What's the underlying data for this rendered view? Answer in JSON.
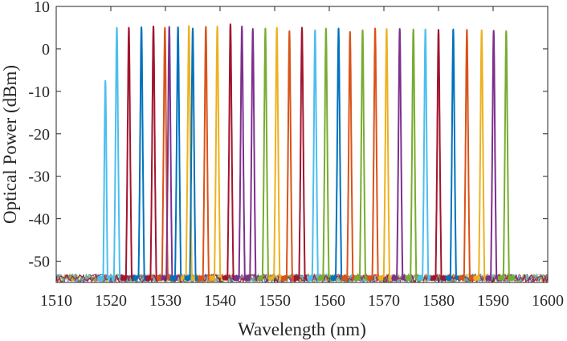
{
  "chart_data": {
    "type": "line",
    "title": "",
    "xlabel": "Wavelength (nm)",
    "ylabel": "Optical Power (dBm)",
    "xlim": [
      1510,
      1600
    ],
    "ylim": [
      -55,
      10
    ],
    "xticks": [
      1510,
      1520,
      1530,
      1540,
      1550,
      1560,
      1570,
      1580,
      1590,
      1600
    ],
    "xtick_labels": [
      "1510",
      "1520",
      "1530",
      "1540",
      "1550",
      "1560",
      "1570",
      "1580",
      "1590",
      "1600"
    ],
    "yticks": [
      -50,
      -40,
      -30,
      -20,
      -10,
      0,
      10
    ],
    "ytick_labels": [
      "-50",
      "-40",
      "-30",
      "-20",
      "-10",
      "0",
      "10"
    ],
    "grid": false,
    "legend": "none",
    "noise_floor_dbm": -54,
    "palette": [
      "#0072BD",
      "#D95319",
      "#EDB120",
      "#7E2F8E",
      "#77AC30",
      "#4DBEEE",
      "#A2142F"
    ],
    "series": [
      {
        "center": 1519.0,
        "peak": -7.5,
        "color": "#4DBEEE"
      },
      {
        "center": 1521.1,
        "peak": 5.0,
        "color": "#4DBEEE"
      },
      {
        "center": 1523.3,
        "peak": 5.0,
        "color": "#A2142F"
      },
      {
        "center": 1525.6,
        "peak": 5.1,
        "color": "#0072BD"
      },
      {
        "center": 1527.8,
        "peak": 5.3,
        "color": "#A2142F"
      },
      {
        "center": 1529.9,
        "peak": 5.0,
        "color": "#D95319"
      },
      {
        "center": 1530.7,
        "peak": 5.2,
        "color": "#7E2F8E"
      },
      {
        "center": 1532.3,
        "peak": 5.1,
        "color": "#0072BD"
      },
      {
        "center": 1534.3,
        "peak": 5.4,
        "color": "#EDB120"
      },
      {
        "center": 1535.0,
        "peak": 4.8,
        "color": "#0072BD"
      },
      {
        "center": 1537.4,
        "peak": 5.2,
        "color": "#D95319"
      },
      {
        "center": 1539.5,
        "peak": 5.3,
        "color": "#EDB120"
      },
      {
        "center": 1541.9,
        "peak": 5.8,
        "color": "#A2142F"
      },
      {
        "center": 1544.0,
        "peak": 5.3,
        "color": "#7E2F8E"
      },
      {
        "center": 1546.0,
        "peak": 4.7,
        "color": "#7E2F8E"
      },
      {
        "center": 1548.3,
        "peak": 4.8,
        "color": "#77AC30"
      },
      {
        "center": 1550.4,
        "peak": 5.0,
        "color": "#EDB120"
      },
      {
        "center": 1552.7,
        "peak": 4.2,
        "color": "#D95319"
      },
      {
        "center": 1555.0,
        "peak": 5.0,
        "color": "#A2142F"
      },
      {
        "center": 1557.4,
        "peak": 4.4,
        "color": "#4DBEEE"
      },
      {
        "center": 1559.4,
        "peak": 4.8,
        "color": "#77AC30"
      },
      {
        "center": 1561.7,
        "peak": 4.8,
        "color": "#0072BD"
      },
      {
        "center": 1563.8,
        "peak": 4.0,
        "color": "#D95319"
      },
      {
        "center": 1566.1,
        "peak": 4.4,
        "color": "#77AC30"
      },
      {
        "center": 1568.4,
        "peak": 4.8,
        "color": "#D95319"
      },
      {
        "center": 1570.5,
        "peak": 4.7,
        "color": "#EDB120"
      },
      {
        "center": 1572.9,
        "peak": 4.7,
        "color": "#7E2F8E"
      },
      {
        "center": 1575.4,
        "peak": 4.6,
        "color": "#77AC30"
      },
      {
        "center": 1577.6,
        "peak": 4.6,
        "color": "#4DBEEE"
      },
      {
        "center": 1580.0,
        "peak": 4.5,
        "color": "#A2142F"
      },
      {
        "center": 1582.7,
        "peak": 4.6,
        "color": "#0072BD"
      },
      {
        "center": 1585.2,
        "peak": 4.5,
        "color": "#D95319"
      },
      {
        "center": 1587.9,
        "peak": 4.4,
        "color": "#EDB120"
      },
      {
        "center": 1590.1,
        "peak": 4.3,
        "color": "#7E2F8E"
      },
      {
        "center": 1592.4,
        "peak": 4.2,
        "color": "#77AC30"
      }
    ]
  }
}
